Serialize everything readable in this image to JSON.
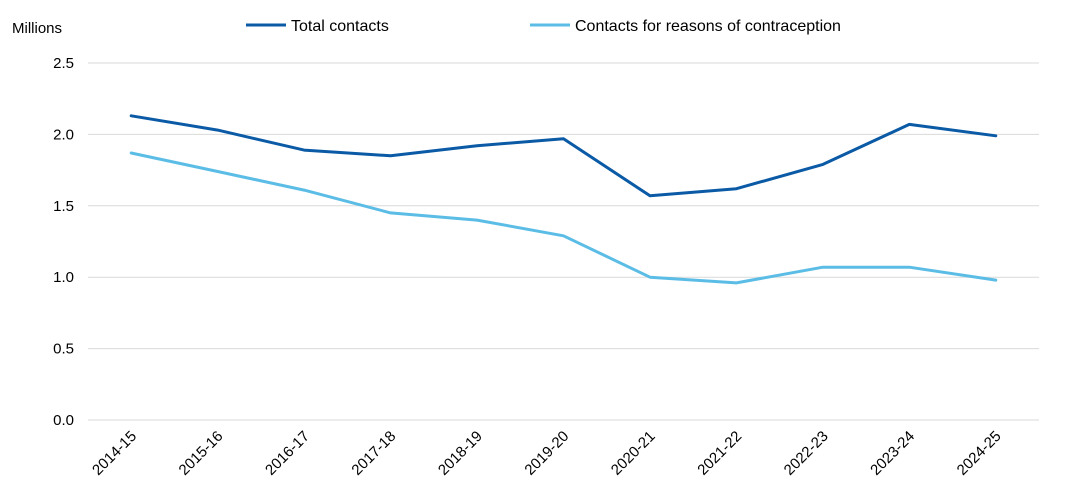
{
  "chart_data": {
    "type": "line",
    "ylabel": "Millions",
    "ylim": [
      0,
      2.5
    ],
    "yticks": [
      "0.0",
      "0.5",
      "1.0",
      "1.5",
      "2.0",
      "2.5"
    ],
    "grid": true,
    "legend_position": "top",
    "categories": [
      "2014-15",
      "2015-16",
      "2016-17",
      "2017-18",
      "2018-19",
      "2019-20",
      "2020-21",
      "2021-22",
      "2022-23",
      "2023-24",
      "2024-25"
    ],
    "series": [
      {
        "name": "Total contacts",
        "color": "#0b5aa6",
        "values": [
          2.13,
          2.03,
          1.89,
          1.85,
          1.92,
          1.97,
          1.57,
          1.62,
          1.79,
          2.07,
          1.99
        ]
      },
      {
        "name": "Contacts for reasons of contraception",
        "color": "#5bbde6",
        "values": [
          1.87,
          1.74,
          1.61,
          1.45,
          1.4,
          1.29,
          1.0,
          0.96,
          1.07,
          1.07,
          0.98
        ]
      }
    ]
  }
}
